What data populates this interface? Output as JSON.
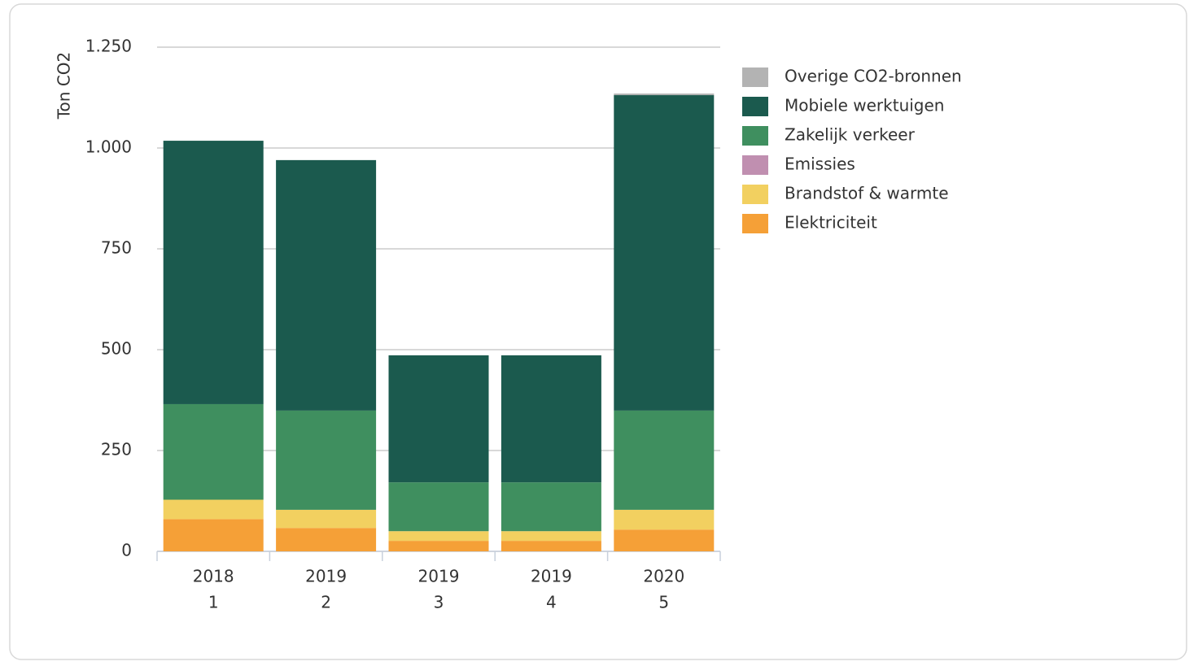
{
  "chart_data": {
    "type": "stacked_bar",
    "y_label": "Ton CO2",
    "categories": [
      [
        "2018",
        "1"
      ],
      [
        "2019",
        "2"
      ],
      [
        "2019",
        "3"
      ],
      [
        "2019",
        "4"
      ],
      [
        "2020",
        "5"
      ]
    ],
    "series": [
      {
        "name": "Elektriciteit",
        "color": "#f5a037",
        "values": [
          80,
          58,
          26,
          26,
          54
        ]
      },
      {
        "name": "Brandstof & warmte",
        "color": "#f2d060",
        "values": [
          48,
          45,
          24,
          24,
          49
        ]
      },
      {
        "name": "Emissies",
        "color": "#c08fb0",
        "values": [
          0,
          0,
          0,
          0,
          0
        ]
      },
      {
        "name": "Zakelijk verkeer",
        "color": "#3f8f5f",
        "values": [
          237,
          246,
          121,
          121,
          246
        ]
      },
      {
        "name": "Mobiele werktuigen",
        "color": "#1b5a4e",
        "values": [
          653,
          621,
          315,
          315,
          782
        ]
      },
      {
        "name": "Overige CO2-bronnen",
        "color": "#b3b3b3",
        "values": [
          0,
          0,
          0,
          0,
          4
        ]
      }
    ],
    "ylim": [
      0,
      1250
    ],
    "yticks": [
      0,
      250,
      500,
      750,
      {
        "value": 1000,
        "label": "1.000"
      },
      {
        "value": 1250,
        "label": "1.250"
      }
    ],
    "grid": true,
    "legend": "right"
  }
}
